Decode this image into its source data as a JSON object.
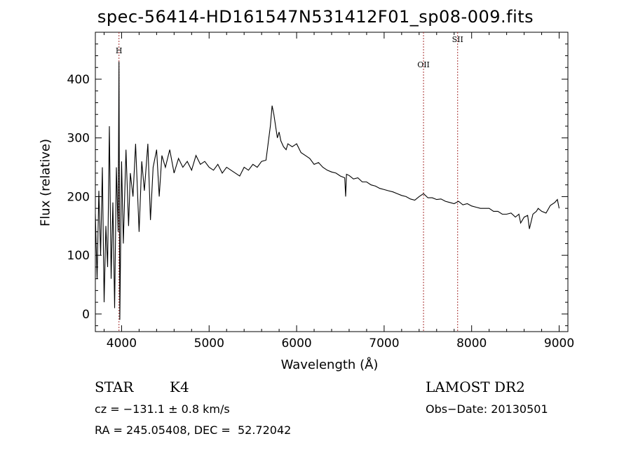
{
  "chart_data": {
    "type": "line",
    "title": "spec-56414-HD161547N531412F01_sp08-009.fits",
    "xlabel": "Wavelength (Å)",
    "ylabel": "Flux (relative)",
    "xlim": [
      3700,
      9100
    ],
    "ylim": [
      -30,
      480
    ],
    "x_ticks": [
      4000,
      5000,
      6000,
      7000,
      8000,
      9000
    ],
    "y_ticks": [
      0,
      100,
      200,
      300,
      400
    ],
    "grid": false,
    "line_color": "#000000",
    "marker_color": "#a83232",
    "lines": [
      {
        "label": "H",
        "wavelength": 3970
      },
      {
        "label": "OII",
        "wavelength": 7450
      },
      {
        "label": "SII",
        "wavelength": 7840
      }
    ],
    "series": [
      {
        "x": [
          3700,
          3720,
          3740,
          3760,
          3780,
          3800,
          3820,
          3840,
          3860,
          3880,
          3900,
          3920,
          3940,
          3960,
          3970,
          3980,
          4000,
          4020,
          4050,
          4080,
          4100,
          4130,
          4160,
          4200,
          4230,
          4260,
          4300,
          4330,
          4360,
          4400,
          4430,
          4460,
          4500,
          4550,
          4600,
          4650,
          4700,
          4750,
          4800,
          4850,
          4900,
          4950,
          5000,
          5050,
          5100,
          5150,
          5200,
          5250,
          5300,
          5350,
          5400,
          5450,
          5500,
          5550,
          5600,
          5650,
          5700,
          5720,
          5740,
          5760,
          5780,
          5800,
          5820,
          5850,
          5880,
          5900,
          5950,
          6000,
          6050,
          6100,
          6150,
          6200,
          6250,
          6300,
          6350,
          6400,
          6450,
          6500,
          6550,
          6560,
          6570,
          6600,
          6650,
          6700,
          6750,
          6800,
          6850,
          6900,
          6950,
          7000,
          7050,
          7100,
          7150,
          7200,
          7250,
          7300,
          7350,
          7400,
          7450,
          7500,
          7550,
          7600,
          7650,
          7700,
          7750,
          7800,
          7850,
          7900,
          7950,
          8000,
          8050,
          8100,
          8150,
          8200,
          8250,
          8300,
          8350,
          8400,
          8450,
          8500,
          8540,
          8560,
          8600,
          8640,
          8660,
          8700,
          8740,
          8760,
          8800,
          8850,
          8900,
          8950,
          8980,
          9000
        ],
        "y": [
          170,
          60,
          210,
          100,
          250,
          20,
          150,
          80,
          320,
          60,
          190,
          10,
          250,
          140,
          430,
          -10,
          260,
          120,
          280,
          150,
          240,
          200,
          290,
          140,
          260,
          210,
          290,
          160,
          250,
          280,
          200,
          270,
          250,
          280,
          240,
          265,
          250,
          260,
          245,
          270,
          255,
          260,
          250,
          245,
          255,
          240,
          250,
          245,
          240,
          235,
          250,
          245,
          255,
          250,
          260,
          262,
          320,
          355,
          340,
          320,
          300,
          310,
          295,
          285,
          280,
          290,
          285,
          290,
          275,
          270,
          265,
          255,
          258,
          250,
          245,
          242,
          240,
          235,
          232,
          200,
          238,
          236,
          230,
          232,
          225,
          225,
          220,
          218,
          214,
          212,
          210,
          208,
          205,
          202,
          200,
          196,
          194,
          200,
          205,
          198,
          198,
          195,
          196,
          192,
          190,
          188,
          192,
          186,
          188,
          184,
          182,
          180,
          180,
          180,
          175,
          175,
          170,
          170,
          172,
          165,
          170,
          155,
          165,
          168,
          145,
          170,
          175,
          180,
          175,
          172,
          185,
          190,
          195,
          180
        ]
      }
    ],
    "annotations": {
      "object_type": "STAR",
      "subclass": "K4",
      "survey": "LAMOST DR2",
      "cz": "cz = −131.1 ± 0.8 km/s",
      "obs_date": "Obs−Date: 20130501",
      "coords": "RA = 245.05408, DEC =  52.72042"
    }
  }
}
